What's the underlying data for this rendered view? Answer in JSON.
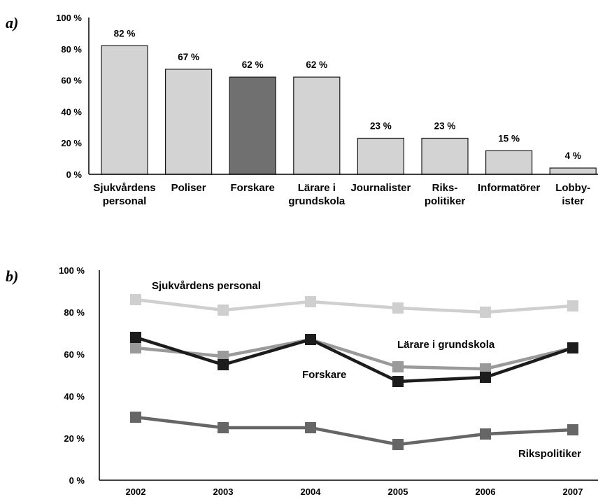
{
  "chart_data": [
    {
      "panel_label": "a)",
      "type": "bar",
      "categories": [
        [
          "Sjukvårdens",
          "personal"
        ],
        [
          "Poliser"
        ],
        [
          "Forskare"
        ],
        [
          "Lärare i",
          "grundskola"
        ],
        [
          "Journalister"
        ],
        [
          "Riks-",
          "politiker"
        ],
        [
          "Informatörer"
        ],
        [
          "Lobby-",
          "ister"
        ]
      ],
      "values": [
        82,
        67,
        62,
        62,
        23,
        23,
        15,
        4
      ],
      "data_labels": [
        "82 %",
        "67 %",
        "62 %",
        "62 %",
        "23 %",
        "23 %",
        "15 %",
        "4 %"
      ],
      "highlight_index": 2,
      "ylim": [
        0,
        100
      ],
      "yticks": [
        0,
        20,
        40,
        60,
        80,
        100
      ],
      "ytick_labels": [
        "0 %",
        "20 %",
        "40 %",
        "60 %",
        "80 %",
        "100 %"
      ],
      "colors": {
        "bar": "#d3d3d3",
        "highlight": "#707070",
        "outline": "#1a1a1a"
      }
    },
    {
      "panel_label": "b)",
      "type": "line",
      "x": [
        "2002",
        "2003",
        "2004",
        "2005",
        "2006",
        "2007"
      ],
      "ylim": [
        0,
        100
      ],
      "yticks": [
        0,
        20,
        40,
        60,
        80,
        100
      ],
      "ytick_labels": [
        "0 %",
        "20 %",
        "40 %",
        "60 %",
        "80 %",
        "100 %"
      ],
      "series": [
        {
          "name": "Sjukvårdens personal",
          "values": [
            86,
            81,
            85,
            82,
            80,
            83
          ],
          "color": "#cfcfcf",
          "key": "sjukvard"
        },
        {
          "name": "Lärare i grundskola",
          "values": [
            63,
            59,
            67,
            54,
            53,
            63
          ],
          "color": "#9a9a9a",
          "key": "larare"
        },
        {
          "name": "Forskare",
          "values": [
            68,
            55,
            67,
            47,
            49,
            63
          ],
          "color": "#1c1c1c",
          "key": "forskare"
        },
        {
          "name": "Rikspolitiker",
          "values": [
            30,
            25,
            25,
            17,
            22,
            24
          ],
          "color": "#666666",
          "key": "riks"
        }
      ]
    }
  ]
}
